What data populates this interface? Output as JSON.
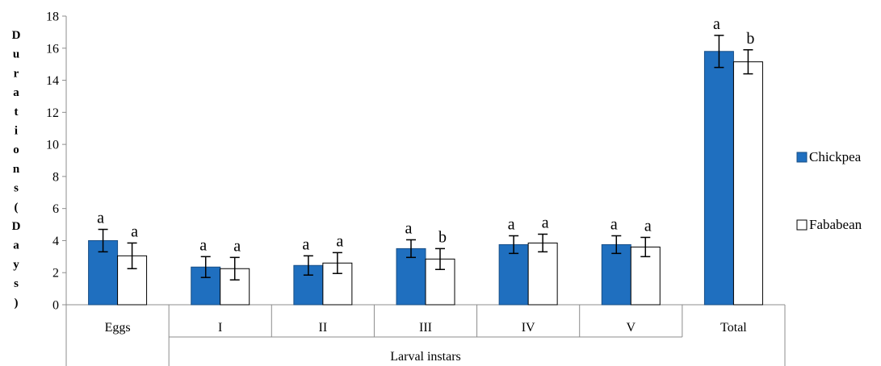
{
  "chart_data": {
    "type": "bar",
    "ylabel": "Durations (Days)",
    "xlabel": "Larval instars",
    "ylim": [
      0,
      18
    ],
    "yticks": [
      0,
      2,
      4,
      6,
      8,
      10,
      12,
      14,
      16,
      18
    ],
    "grid": false,
    "legend_position": "right",
    "categories": [
      "Eggs",
      "I",
      "II",
      "III",
      "IV",
      "V",
      "Total"
    ],
    "series": [
      {
        "name": "Chickpea",
        "color": "#1f6fbf",
        "values": [
          4.0,
          2.35,
          2.45,
          3.5,
          3.75,
          3.75,
          15.8
        ],
        "errors": [
          0.7,
          0.65,
          0.6,
          0.55,
          0.55,
          0.55,
          1.0
        ],
        "letters": [
          "a",
          "a",
          "a",
          "a",
          "a",
          "a",
          "a"
        ]
      },
      {
        "name": "Fababean",
        "color": "#ffffff",
        "values": [
          3.05,
          2.25,
          2.6,
          2.85,
          3.85,
          3.6,
          15.15
        ],
        "errors": [
          0.8,
          0.7,
          0.65,
          0.65,
          0.55,
          0.6,
          0.75
        ],
        "letters": [
          "a",
          "a",
          "a",
          "b",
          "a",
          "a",
          "b"
        ]
      }
    ]
  }
}
